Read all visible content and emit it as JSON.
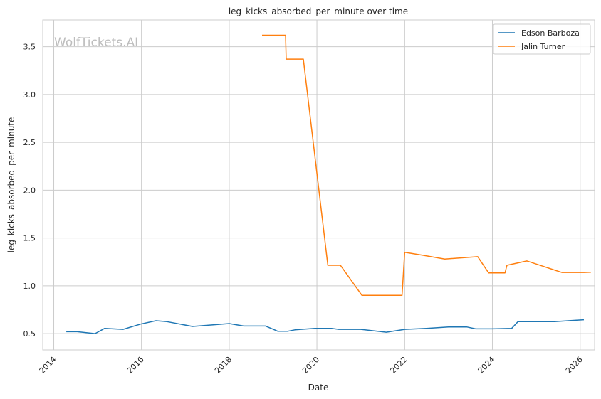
{
  "chart_data": {
    "type": "line",
    "title": "leg_kicks_absorbed_per_minute over time",
    "xlabel": "Date",
    "ylabel": "leg_kicks_absorbed_per_minute",
    "watermark": "WolfTickets.AI",
    "x_ticks": [
      "2014",
      "2016",
      "2018",
      "2020",
      "2022",
      "2024",
      "2026"
    ],
    "y_ticks": [
      "0.5",
      "1.0",
      "1.5",
      "2.0",
      "2.5",
      "3.0",
      "3.5"
    ],
    "xlim": [
      "2013-10-01",
      "2026-05-01"
    ],
    "ylim": [
      0.33,
      3.78
    ],
    "grid": true,
    "legend_position": "top-right",
    "series": [
      {
        "name": "Edson Barboza",
        "color": "#1f77b4",
        "points": [
          [
            "2014-04-15",
            0.52
          ],
          [
            "2014-07-15",
            0.52
          ],
          [
            "2014-12-10",
            0.5
          ],
          [
            "2015-03-01",
            0.555
          ],
          [
            "2015-08-01",
            0.545
          ],
          [
            "2015-12-25",
            0.6
          ],
          [
            "2016-05-01",
            0.635
          ],
          [
            "2016-08-01",
            0.625
          ],
          [
            "2017-03-01",
            0.575
          ],
          [
            "2018-01-01",
            0.605
          ],
          [
            "2018-05-01",
            0.58
          ],
          [
            "2018-10-30",
            0.58
          ],
          [
            "2019-02-10",
            0.525
          ],
          [
            "2019-05-01",
            0.525
          ],
          [
            "2019-07-01",
            0.54
          ],
          [
            "2019-12-15",
            0.555
          ],
          [
            "2020-05-01",
            0.555
          ],
          [
            "2020-07-01",
            0.545
          ],
          [
            "2021-01-01",
            0.545
          ],
          [
            "2021-08-01",
            0.515
          ],
          [
            "2022-01-01",
            0.545
          ],
          [
            "2022-07-01",
            0.555
          ],
          [
            "2023-01-01",
            0.57
          ],
          [
            "2023-06-01",
            0.57
          ],
          [
            "2023-08-15",
            0.55
          ],
          [
            "2024-01-01",
            0.55
          ],
          [
            "2024-06-10",
            0.555
          ],
          [
            "2024-08-01",
            0.625
          ],
          [
            "2025-06-01",
            0.625
          ],
          [
            "2025-12-01",
            0.64
          ],
          [
            "2026-02-01",
            0.645
          ]
        ]
      },
      {
        "name": "Jalin Turner",
        "color": "#ff7f0e",
        "points": [
          [
            "2018-10-01",
            3.62
          ],
          [
            "2019-04-15",
            3.62
          ],
          [
            "2019-04-20",
            3.37
          ],
          [
            "2019-09-10",
            3.37
          ],
          [
            "2020-04-01",
            1.215
          ],
          [
            "2020-07-15",
            1.215
          ],
          [
            "2021-01-10",
            0.9
          ],
          [
            "2021-12-10",
            0.9
          ],
          [
            "2022-01-01",
            1.35
          ],
          [
            "2022-06-01",
            1.32
          ],
          [
            "2022-12-01",
            1.28
          ],
          [
            "2023-09-01",
            1.305
          ],
          [
            "2023-12-01",
            1.135
          ],
          [
            "2024-04-15",
            1.135
          ],
          [
            "2024-05-01",
            1.215
          ],
          [
            "2024-10-15",
            1.26
          ],
          [
            "2025-08-01",
            1.14
          ],
          [
            "2026-02-01",
            1.14
          ],
          [
            "2026-04-01",
            1.142
          ]
        ]
      }
    ]
  }
}
